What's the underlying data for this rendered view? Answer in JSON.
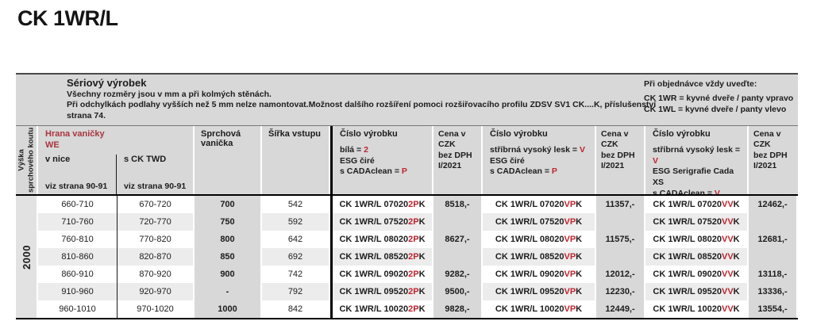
{
  "page": {
    "title": "CK 1WR/L"
  },
  "intro": {
    "heading": "Sériový výrobek",
    "line1": "Všechny rozměry jsou v mm a při kolmých stěnách.",
    "line2": "Při odchylkách podlahy vyšších než 5 mm nelze namontovat.Možnost dalšího rozšíření pomoci rozšiřovacího profilu ZDSV SV1 CK....K, příslušenství",
    "line3": "strana 74."
  },
  "order_note": {
    "heading": "Při objednávce vždy uveďte:",
    "line1": "CK 1WR = kyvné dveře / panty vpravo",
    "line2": "CK 1WL = kyvné dveře / panty vlevo"
  },
  "colors": {
    "accent_red_header": "#a8353f",
    "accent_red_code": "#c0242e"
  },
  "table": {
    "left_header_line1": "Výška",
    "left_header_line2": "sprchového koutu",
    "height_value": "2000",
    "hrana": {
      "title": "Hrana vaničky",
      "subtitle": "WE",
      "col1_label": "v nice",
      "col1_note": "viz strana 90-91",
      "col2_label": "s CK TWD",
      "col2_note": "viz strana 90-91"
    },
    "vanicka_header": "Sprchová vanička",
    "sirka_header": "Šířka vstupu",
    "price_header": [
      "Cena v CZK",
      "bez DPH",
      "I/2021"
    ],
    "product_columns": [
      {
        "title": "Číslo výrobku",
        "lines": [
          [
            {
              "text": "bílá = "
            },
            {
              "text": "2",
              "red": true
            }
          ],
          [
            {
              "text": "ESG čiré"
            }
          ],
          [
            {
              "text": "s CADAclean = "
            },
            {
              "text": "P",
              "red": true
            }
          ]
        ],
        "suffix_red": "2P",
        "suffix_black": "K"
      },
      {
        "title": "Číslo výrobku",
        "lines": [
          [
            {
              "text": "stříbrná vysoký lesk = "
            },
            {
              "text": "V",
              "red": true
            }
          ],
          [
            {
              "text": "ESG čiré"
            }
          ],
          [
            {
              "text": "s CADAclean = "
            },
            {
              "text": "P",
              "red": true
            }
          ]
        ],
        "suffix_red": "VP",
        "suffix_black": "K"
      },
      {
        "title": "Číslo výrobku",
        "lines": [
          [
            {
              "text": "stříbrná vysoký lesk = "
            },
            {
              "text": "V",
              "red": true
            }
          ],
          [
            {
              "text": "ESG Serigrafie Cada XS"
            }
          ],
          [
            {
              "text": "s CADAclean = "
            },
            {
              "text": "V",
              "red": true
            }
          ]
        ],
        "suffix_red": "VV",
        "suffix_black": "K"
      }
    ],
    "rows": [
      {
        "v_nice": "660-710",
        "s_ck_twd": "670-720",
        "vanicka": "700",
        "sirka": "542",
        "code_base": "CK 1WR/L 07020",
        "prices": [
          "8518,-",
          "11357,-",
          "12462,-"
        ]
      },
      {
        "v_nice": "710-760",
        "s_ck_twd": "720-770",
        "vanicka": "750",
        "sirka": "592",
        "code_base": "CK 1WR/L 07520",
        "prices": [
          "",
          "",
          ""
        ]
      },
      {
        "v_nice": "760-810",
        "s_ck_twd": "770-820",
        "vanicka": "800",
        "sirka": "642",
        "code_base": "CK 1WR/L 08020",
        "prices": [
          "8627,-",
          "11575,-",
          "12681,-"
        ]
      },
      {
        "v_nice": "810-860",
        "s_ck_twd": "820-870",
        "vanicka": "850",
        "sirka": "692",
        "code_base": "CK 1WR/L 08520",
        "prices": [
          "",
          "",
          ""
        ]
      },
      {
        "v_nice": "860-910",
        "s_ck_twd": "870-920",
        "vanicka": "900",
        "sirka": "742",
        "code_base": "CK 1WR/L 09020",
        "prices": [
          "9282,-",
          "12012,-",
          "13118,-"
        ]
      },
      {
        "v_nice": "910-960",
        "s_ck_twd": "920-970",
        "vanicka": "-",
        "sirka": "792",
        "code_base": "CK 1WR/L 09520",
        "prices": [
          "9500,-",
          "12230,-",
          "13336,-"
        ]
      },
      {
        "v_nice": "960-1010",
        "s_ck_twd": "970-1020",
        "vanicka": "1000",
        "sirka": "842",
        "code_base": "CK 1WR/L 10020",
        "prices": [
          "9828,-",
          "12449,-",
          "13554,-"
        ]
      }
    ]
  }
}
